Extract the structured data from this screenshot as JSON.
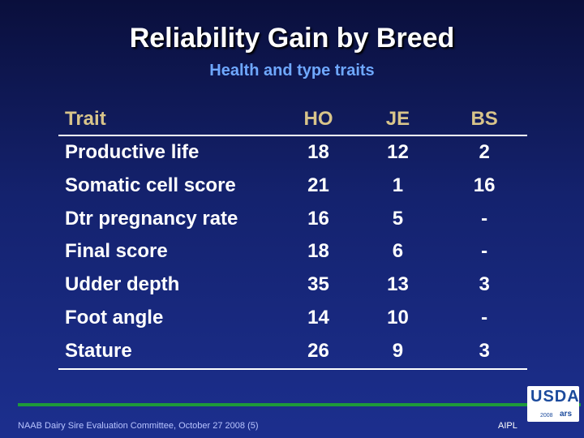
{
  "slide": {
    "title": "Reliability Gain by Breed",
    "subtitle": "Health and type traits"
  },
  "table": {
    "headers": [
      "Trait",
      "HO",
      "JE",
      "BS"
    ],
    "rows": [
      [
        "Productive life",
        "18",
        "12",
        "2"
      ],
      [
        "Somatic cell score",
        "21",
        "1",
        "16"
      ],
      [
        "Dtr pregnancy rate",
        "16",
        "5",
        "-"
      ],
      [
        "Final score",
        "18",
        "6",
        "-"
      ],
      [
        "Udder depth",
        "35",
        "13",
        "3"
      ],
      [
        "Foot angle",
        "14",
        "10",
        "-"
      ],
      [
        "Stature",
        "26",
        "9",
        "3"
      ]
    ]
  },
  "footer": {
    "left": "NAAB Dairy Sire Evaluation Committee, October 27 2008 (5)",
    "right": "AIPL"
  },
  "logo": {
    "text": "USDA",
    "year": "2008",
    "mark": "ars"
  },
  "colors": {
    "header_text": "#d8c48a",
    "subtitle": "#6fa8ff",
    "rule": "#1e9a3a"
  }
}
